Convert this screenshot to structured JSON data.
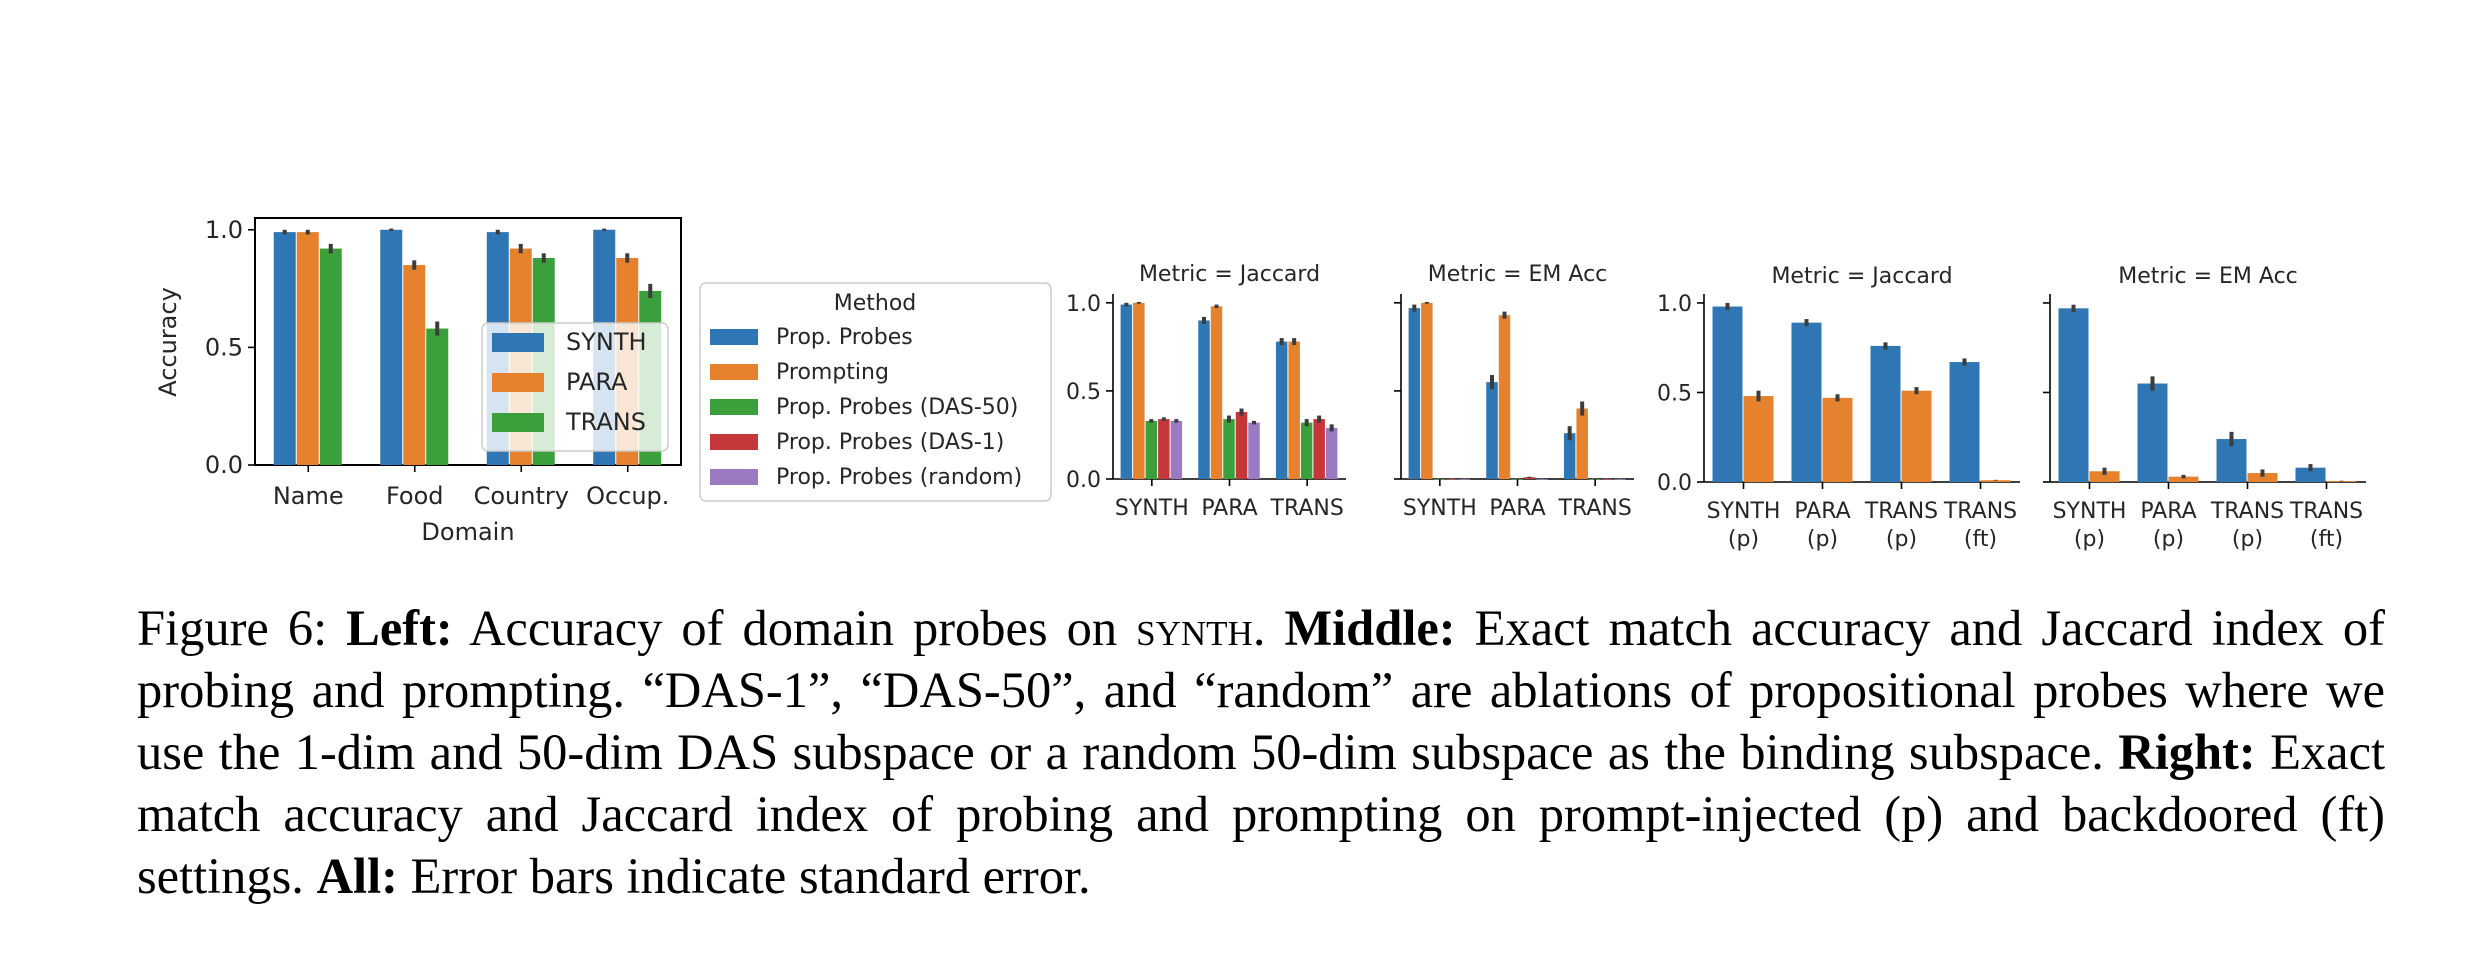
{
  "colors": {
    "SYNTH": "#2f77b4",
    "PARA": "#e6822d",
    "TRANS": "#3ba03b",
    "Prop. Probes": "#2f77b4",
    "Prompting": "#e6822d",
    "Prop. Probes (DAS-50)": "#3ba03b",
    "Prop. Probes (DAS-1)": "#c6373a",
    "Prop. Probes (random)": "#9a7bc1",
    "err": "#3c3c3c"
  },
  "chart_data": [
    {
      "type": "bar",
      "title": "",
      "xlabel": "Domain",
      "ylabel": "Accuracy",
      "ylim": [
        0,
        1.05
      ],
      "yticks": [
        "0.0",
        "0.5",
        "1.0"
      ],
      "categories": [
        "Name",
        "Food",
        "Country",
        "Occup."
      ],
      "series": [
        {
          "name": "SYNTH",
          "values": [
            0.99,
            1.0,
            0.99,
            1.0
          ],
          "err": [
            0.01,
            0.005,
            0.01,
            0.005
          ]
        },
        {
          "name": "PARA",
          "values": [
            0.99,
            0.85,
            0.92,
            0.88
          ],
          "err": [
            0.01,
            0.02,
            0.02,
            0.02
          ]
        },
        {
          "name": "TRANS",
          "values": [
            0.92,
            0.58,
            0.88,
            0.74
          ],
          "err": [
            0.02,
            0.03,
            0.02,
            0.03
          ]
        }
      ],
      "legend": "center-right"
    },
    {
      "type": "bar",
      "title": "Metric = Jaccard",
      "ylim": [
        0,
        1.05
      ],
      "yticks": [
        "0.0",
        "0.5",
        "1.0"
      ],
      "categories": [
        "SYNTH",
        "PARA",
        "TRANS"
      ],
      "series": [
        {
          "name": "Prop. Probes",
          "values": [
            0.99,
            0.9,
            0.78
          ],
          "err": [
            0.01,
            0.02,
            0.02
          ]
        },
        {
          "name": "Prompting",
          "values": [
            1.0,
            0.98,
            0.78
          ],
          "err": [
            0.005,
            0.01,
            0.02
          ]
        },
        {
          "name": "Prop. Probes (DAS-50)",
          "values": [
            0.33,
            0.34,
            0.32
          ],
          "err": [
            0.01,
            0.02,
            0.02
          ]
        },
        {
          "name": "Prop. Probes (DAS-1)",
          "values": [
            0.34,
            0.38,
            0.34
          ],
          "err": [
            0.01,
            0.02,
            0.02
          ]
        },
        {
          "name": "Prop. Probes (random)",
          "values": [
            0.33,
            0.32,
            0.29
          ],
          "err": [
            0.01,
            0.01,
            0.02
          ]
        }
      ]
    },
    {
      "type": "bar",
      "title": "Metric = EM Acc",
      "ylim": [
        0,
        1.05
      ],
      "categories": [
        "SYNTH",
        "PARA",
        "TRANS"
      ],
      "series": [
        {
          "name": "Prop. Probes",
          "values": [
            0.97,
            0.55,
            0.26
          ],
          "err": [
            0.02,
            0.04,
            0.04
          ]
        },
        {
          "name": "Prompting",
          "values": [
            1.0,
            0.93,
            0.4
          ],
          "err": [
            0.005,
            0.02,
            0.04
          ]
        },
        {
          "name": "Prop. Probes (DAS-50)",
          "values": [
            0.0,
            0.0,
            0.0
          ],
          "err": [
            0.003,
            0.003,
            0.003
          ]
        },
        {
          "name": "Prop. Probes (DAS-1)",
          "values": [
            0.0,
            0.01,
            0.0
          ],
          "err": [
            0.003,
            0.003,
            0.003
          ]
        },
        {
          "name": "Prop. Probes (random)",
          "values": [
            0.0,
            0.0,
            0.0
          ],
          "err": [
            0.003,
            0.003,
            0.003
          ]
        }
      ]
    },
    {
      "type": "bar",
      "title": "Metric = Jaccard",
      "ylim": [
        0,
        1.05
      ],
      "yticks": [
        "0.0",
        "0.5",
        "1.0"
      ],
      "categories": [
        "SYNTH\n(p)",
        "PARA\n(p)",
        "TRANS\n(p)",
        "TRANS\n(ft)"
      ],
      "series": [
        {
          "name": "Prop. Probes",
          "values": [
            0.98,
            0.89,
            0.76,
            0.67
          ],
          "err": [
            0.02,
            0.02,
            0.02,
            0.02
          ]
        },
        {
          "name": "Prompting",
          "values": [
            0.48,
            0.47,
            0.51,
            0.01
          ],
          "err": [
            0.03,
            0.02,
            0.02,
            0.002
          ]
        }
      ]
    },
    {
      "type": "bar",
      "title": "Metric = EM Acc",
      "ylim": [
        0,
        1.05
      ],
      "categories": [
        "SYNTH\n(p)",
        "PARA\n(p)",
        "TRANS\n(p)",
        "TRANS\n(ft)"
      ],
      "series": [
        {
          "name": "Prop. Probes",
          "values": [
            0.97,
            0.55,
            0.24,
            0.08
          ],
          "err": [
            0.02,
            0.04,
            0.04,
            0.02
          ]
        },
        {
          "name": "Prompting",
          "values": [
            0.06,
            0.03,
            0.05,
            0.005
          ],
          "err": [
            0.02,
            0.01,
            0.02,
            0.002
          ]
        }
      ]
    }
  ],
  "legend_method": {
    "title": "Method",
    "items": [
      "Prop. Probes",
      "Prompting",
      "Prop. Probes (DAS-50)",
      "Prop. Probes (DAS-1)",
      "Prop. Probes (random)"
    ]
  },
  "caption": {
    "label": "Figure 6:",
    "left_head": "Left:",
    "left_text_a": "Accuracy of domain probes on",
    "left_synth": "synth",
    "left_text_b": ".",
    "middle_head": "Middle:",
    "middle_text": "Exact match accuracy and Jaccard index of probing and prompting. “DAS-1”, “DAS-50”, and “random” are ablations of propositional probes where we use the 1-dim and 50-dim DAS subspace or a random 50-dim subspace as the binding subspace.",
    "right_head": "Right:",
    "right_text": "Exact match accuracy and Jaccard index of probing and prompting on prompt-injected (p) and backdoored (ft) settings.",
    "all_head": "All:",
    "all_text": "Error bars indicate standard error."
  }
}
